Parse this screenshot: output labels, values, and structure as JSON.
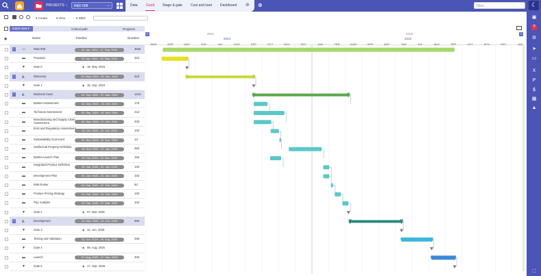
{
  "topbar": {
    "projects_label": "PROJECTS",
    "project_select": "R&D 008",
    "tabs": [
      "Data",
      "Gantt",
      "Stage & gate",
      "Cost and load",
      "Dashboard"
    ],
    "active_tab": "Gantt",
    "filter_placeholder": "Filter..."
  },
  "toolbar": {
    "create_label": "Create",
    "view_label": "View",
    "wbs_label": "WBS",
    "search_value": "..."
  },
  "viewbar": {
    "view_label": "Gantt view",
    "critical_path_label": "Critical path",
    "progress_label": "Progress"
  },
  "grid_headers": {
    "name": "Name",
    "timeline": "Timeline",
    "duration": "Duration"
  },
  "timeline": {
    "years": [
      "2024",
      "2025"
    ],
    "months": [
      "MAR",
      "APR",
      "MAY",
      "JUN",
      "JUL",
      "AUG",
      "SEP",
      "OCT",
      "NOV",
      "DEC",
      "JAN",
      "FEB",
      "MAR",
      "APR",
      "MAY",
      "JUN",
      "JUL",
      "AUG",
      "SEP",
      "OCT",
      "NOV",
      "DEC",
      "JAN"
    ]
  },
  "rows": [
    {
      "name": "R&D 008",
      "timeline": "02. Apr. 2024 - 17. Sep. 2025",
      "duration": "382d",
      "kind": "project"
    },
    {
      "name": "Proposal",
      "timeline": "02. Apr. 2024 - 16. May. 2024",
      "duration": "32d",
      "kind": "task"
    },
    {
      "name": "Gate 0",
      "timeline": "16. May. 2024",
      "duration": "",
      "kind": "gate"
    },
    {
      "name": "Discovery",
      "timeline": "16. May. 2024 - 15. Sep. 2024",
      "duration": "91d",
      "kind": "phase"
    },
    {
      "name": "Gate 1",
      "timeline": "15. Sep. 2024",
      "duration": "",
      "kind": "gate"
    },
    {
      "name": "Business Case",
      "timeline": "15. Sep. 2024 - 07. Mar. 2025",
      "duration": "121d",
      "kind": "phase"
    },
    {
      "name": "Market Assessment",
      "timeline": "15. Sep. 2024 - 10. Oct. 2024",
      "duration": "17d",
      "kind": "task"
    },
    {
      "name": "Technical Assessment",
      "timeline": "15. Sep. 2024 - 10. Nov. 2024",
      "duration": "41d",
      "kind": "task"
    },
    {
      "name": "Manufacturing and Supply Chain Assessment",
      "timeline": "15. Sep. 2024 - 17. Oct. 2024",
      "duration": "20d",
      "kind": "task"
    },
    {
      "name": "EHS and Regulatory Assessment",
      "timeline": "16. Oct. 2024 - 31. Oct. 2024",
      "duration": "10d",
      "kind": "task"
    },
    {
      "name": "Sustainability Scorecard",
      "timeline": "01. Nov. 2024 - 01. Nov. 2024",
      "duration": "1d",
      "kind": "task"
    },
    {
      "name": "Intellectual Property Definition",
      "timeline": "18. Nov. 2024 - 17. Jan. 2025",
      "duration": "45d",
      "kind": "task"
    },
    {
      "name": "Market Launch Plan",
      "timeline": "15. Oct. 2024 - 04. Nov. 2024",
      "duration": "15d",
      "kind": "task"
    },
    {
      "name": "Integrated Product Definition",
      "timeline": "20. Jan. 2025 - 31. Jan. 2025",
      "duration": "10d",
      "kind": "task"
    },
    {
      "name": "Development Plan",
      "timeline": "20. Jan. 2025 - 31. Jan. 2025",
      "duration": "10d",
      "kind": "task"
    },
    {
      "name": "Risk Roster",
      "timeline": "03. Feb. 2025 - 07. Feb. 2025",
      "duration": "5d",
      "kind": "task"
    },
    {
      "name": "Product Pricing Strategy",
      "timeline": "10. Feb. 2025 - 21. Feb. 2025",
      "duration": "10d",
      "kind": "task"
    },
    {
      "name": "P&L Analysis",
      "timeline": "24. Feb. 2025 - 07. Mar. 2025",
      "duration": "10d",
      "kind": "task"
    },
    {
      "name": "Gate 2",
      "timeline": "07. Mar. 2025",
      "duration": "",
      "kind": "gate"
    },
    {
      "name": "Development",
      "timeline": "10. Mar. 2025 - 12. Jun. 2025",
      "duration": "69d",
      "kind": "phase"
    },
    {
      "name": "Gate 3",
      "timeline": "12. Jun. 2025",
      "duration": "",
      "kind": "gate"
    },
    {
      "name": "Testing and Validation",
      "timeline": "13. Jun. 2025 - 06. Aug. 2025",
      "duration": "39d",
      "kind": "task"
    },
    {
      "name": "Gate 4",
      "timeline": "06. Aug. 2025",
      "duration": "",
      "kind": "gate"
    },
    {
      "name": "Launch",
      "timeline": "07. Aug. 2025 - 17. Sep. 2025",
      "duration": "30d",
      "kind": "task"
    },
    {
      "name": "Gate 5",
      "timeline": "17. Sep. 2025",
      "duration": "",
      "kind": "gate"
    }
  ],
  "colors": {
    "brand": "#4a55b5",
    "active_tab": "#d03070",
    "project_bar": "#a8d86a",
    "proposal_bar": "#e8e020",
    "discovery_bar": "#c8d83a",
    "business_case_bar": "#5aa84c",
    "task_bar": "#5cc8c8",
    "development_bar": "#2a8a78",
    "testing_bar": "#3ab8d8",
    "launch_bar": "#3a8ad8"
  }
}
